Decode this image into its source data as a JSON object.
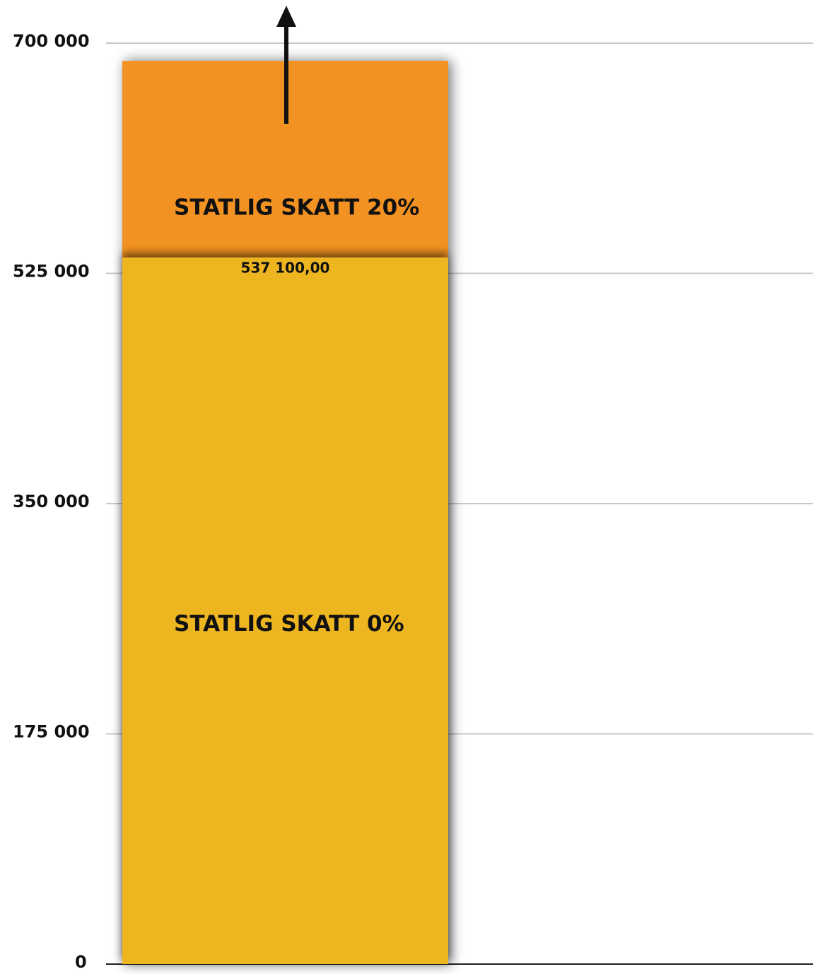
{
  "chart_data": {
    "type": "bar",
    "stacked": true,
    "categories": [
      null
    ],
    "series": [
      {
        "name": "STATLIG SKATT 0%",
        "color": "#edb520",
        "values": [
          537100
        ],
        "value_labels": [
          "537 100,00"
        ]
      },
      {
        "name": "STATLIG SKATT 20%",
        "color": "#f29222",
        "values": [
          149400
        ]
      }
    ],
    "ylim": [
      0,
      700000
    ],
    "yticks": [
      {
        "value": 0,
        "label": "0"
      },
      {
        "value": 175000,
        "label": "175 000"
      },
      {
        "value": 350000,
        "label": "350 000"
      },
      {
        "value": 525000,
        "label": "525 000"
      },
      {
        "value": 700000,
        "label": "700 000"
      }
    ],
    "grid": true
  }
}
